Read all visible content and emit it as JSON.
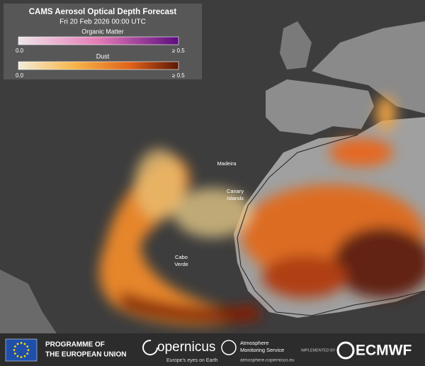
{
  "header": {
    "title": "CAMS Aerosol Optical Depth Forecast",
    "subtitle": "Fri 20 Feb 2026 00:00 UTC"
  },
  "legend": [
    {
      "name": "Organic Matter",
      "min_label": "0.0",
      "max_label": "≥ 0.5"
    },
    {
      "name": "Dust",
      "min_label": "0.0",
      "max_label": "≥ 0.5"
    }
  ],
  "places": [
    {
      "lines": [
        "Madeira"
      ]
    },
    {
      "lines": [
        "Canary",
        "Islands"
      ]
    },
    {
      "lines": [
        "Cabo",
        "Verde"
      ]
    }
  ],
  "footer": {
    "eu": [
      "PROGRAMME OF",
      "THE EUROPEAN UNION"
    ],
    "copernicus": {
      "name": "opernicus",
      "tagline": "Europe's eyes on Earth"
    },
    "cams": {
      "name": [
        "Atmosphere",
        "Monitoring Service"
      ],
      "url": "atmosphere.copernicus.eu"
    },
    "implemented": "IMPLEMENTED BY",
    "ecmwf": "ECMWF"
  }
}
